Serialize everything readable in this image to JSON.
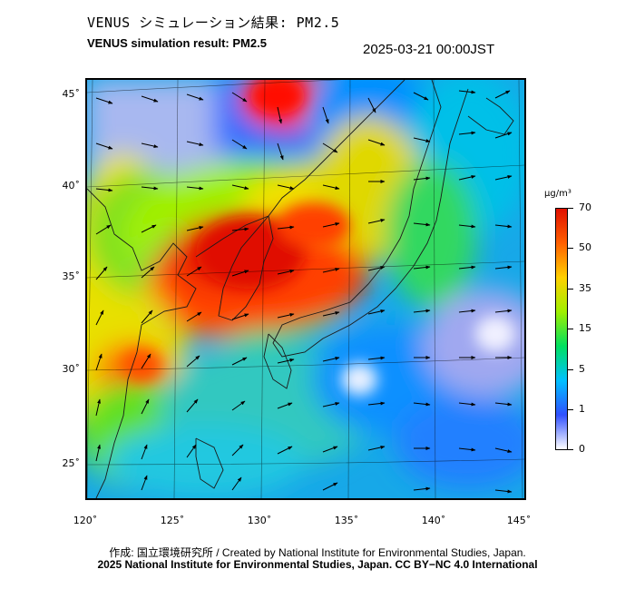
{
  "header": {
    "title_jp": "VENUS シミュレーション結果: PM2.5",
    "title_en": "VENUS simulation result: PM2.5",
    "timestamp": "2025-03-21 00:00JST"
  },
  "map": {
    "latitude_labels": [
      "45˚",
      "40˚",
      "35˚",
      "30˚",
      "25˚"
    ],
    "longitude_labels": [
      "120˚",
      "125˚",
      "130˚",
      "135˚",
      "140˚",
      "145˚"
    ],
    "wind_arrows": "wind-vector field overlay"
  },
  "colorbar": {
    "unit": "μg/m³",
    "ticks": [
      "70",
      "50",
      "35",
      "15",
      "5",
      "1",
      "0"
    ],
    "colors": [
      "#ffffff",
      "#3050ff",
      "#00c0ff",
      "#00e060",
      "#a0f000",
      "#ffd000",
      "#ff6000",
      "#e01000"
    ]
  },
  "footer": {
    "credit_jp": "作成: 国立環境研究所 / Created by National Institute for Environmental Studies, Japan.",
    "credit_en": "2025 National Institute for Environmental Studies, Japan. CC BY−NC 4.0 International"
  }
}
